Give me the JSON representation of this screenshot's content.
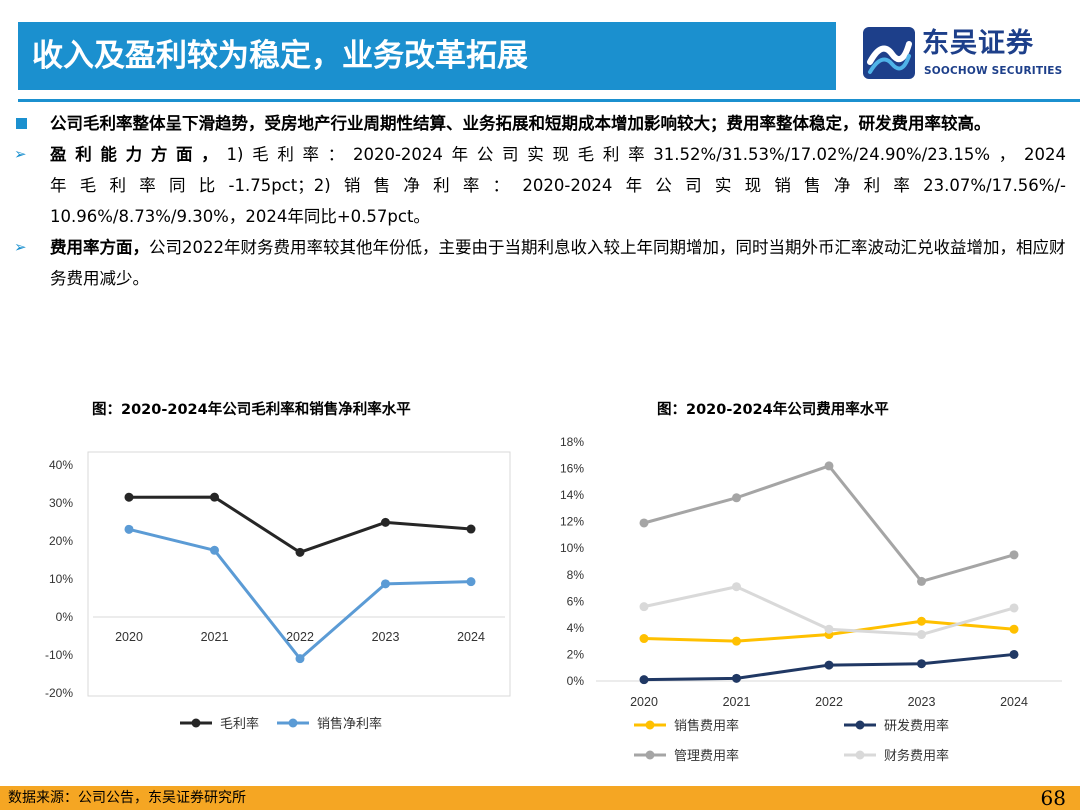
{
  "header": {
    "title": "收入及盈利较为稳定，业务改革拓展",
    "logo_cn": "东吴证券",
    "logo_en": "SOOCHOW SECURITIES"
  },
  "summary": {
    "main": "公司毛利率整体呈下滑趋势，受房地产行业周期性结算、业务拓展和短期成本增加影响较大；费用率整体稳定，研发费用率较高。",
    "profit_label": "盈利能力方面，",
    "profit_line1": "1)毛利率：2020-2024年公司实现毛利率31.52%/31.53%/17.02%/24.90%/23.15%，2024",
    "profit_line2": "年毛利率同比-1.75pct；2)销售净利率：2020-2024年公司实现销售净利率23.07%/17.56%/-",
    "profit_line3": "10.96%/8.73%/9.30%，2024年同比+0.57pct。",
    "expense_label": "费用率方面，",
    "expense_text": "公司2022年财务费用率较其他年份低，主要由于当期利息收入较上年同期增加，同时当期外币汇率波动汇兑收益增加，相应财务费用减少。"
  },
  "chart_data": [
    {
      "type": "line",
      "title": "图：2020-2024年公司毛利率和销售净利率水平",
      "categories": [
        "2020",
        "2021",
        "2022",
        "2023",
        "2024"
      ],
      "series": [
        {
          "name": "毛利率",
          "values": [
            31.52,
            31.53,
            17.02,
            24.9,
            23.15
          ],
          "color": "#262626"
        },
        {
          "name": "销售净利率",
          "values": [
            23.07,
            17.56,
            -10.96,
            8.73,
            9.3
          ],
          "color": "#5b9bd5"
        }
      ],
      "ylim": [
        -20,
        40
      ],
      "yticks": [
        -20,
        -10,
        0,
        10,
        20,
        30,
        40
      ],
      "ytick_labels": [
        "-20%",
        "-10%",
        "0%",
        "10%",
        "20%",
        "30%",
        "40%"
      ],
      "legend": "bottom"
    },
    {
      "type": "line",
      "title": "图：2020-2024年公司费用率水平",
      "categories": [
        "2020",
        "2021",
        "2022",
        "2023",
        "2024"
      ],
      "series": [
        {
          "name": "销售费用率",
          "values": [
            3.2,
            3.0,
            3.5,
            4.5,
            3.9
          ],
          "color": "#ffc000"
        },
        {
          "name": "研发费用率",
          "values": [
            0.1,
            0.2,
            1.2,
            1.3,
            2.0
          ],
          "color": "#203864"
        },
        {
          "name": "管理费用率",
          "values": [
            11.9,
            13.8,
            16.2,
            7.5,
            9.5
          ],
          "color": "#a5a5a5"
        },
        {
          "name": "财务费用率",
          "values": [
            5.6,
            7.1,
            3.9,
            3.5,
            5.5
          ],
          "color": "#d9d9d9"
        }
      ],
      "ylim": [
        0,
        18
      ],
      "yticks": [
        0,
        2,
        4,
        6,
        8,
        10,
        12,
        14,
        16,
        18
      ],
      "ytick_labels": [
        "0%",
        "2%",
        "4%",
        "6%",
        "8%",
        "10%",
        "12%",
        "14%",
        "16%",
        "18%"
      ],
      "legend": "bottom"
    }
  ],
  "footer": {
    "source": "数据来源：公司公告，东吴证券研究所",
    "page": "68"
  }
}
